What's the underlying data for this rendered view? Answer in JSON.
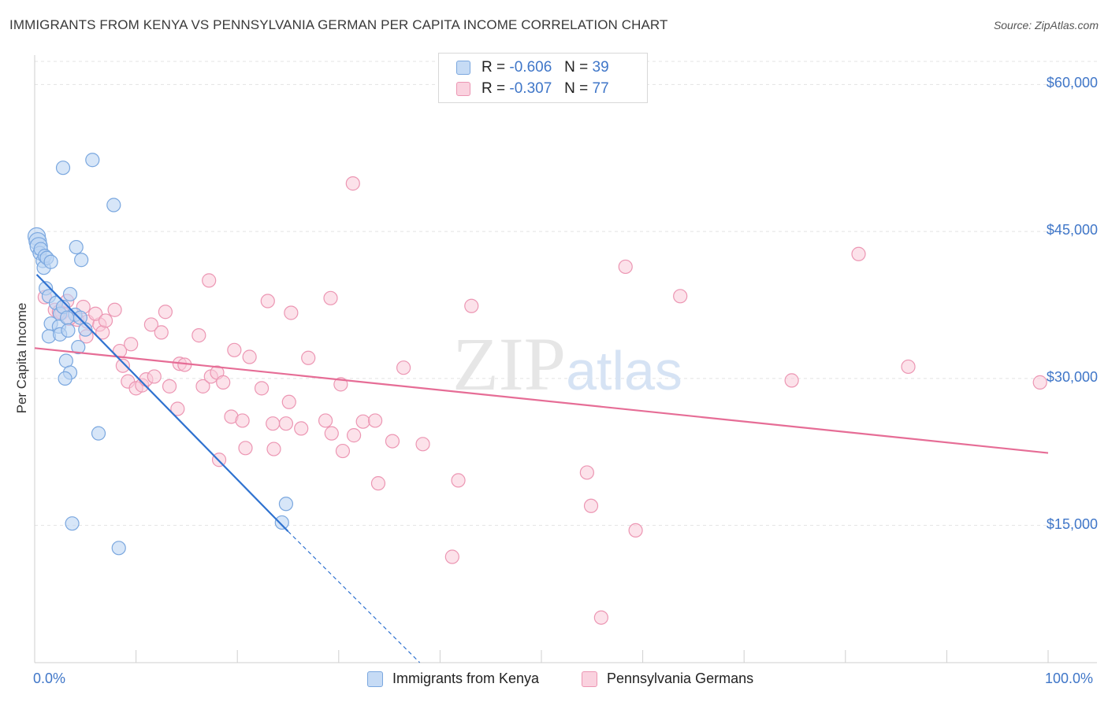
{
  "title": "IMMIGRANTS FROM KENYA VS PENNSYLVANIA GERMAN PER CAPITA INCOME CORRELATION CHART",
  "source": "Source: ZipAtlas.com",
  "watermark": "ZIPatlas",
  "legend": {
    "rows": [
      {
        "r_label": "R =",
        "r_value": "-0.606",
        "n_label": "N =",
        "n_value": "39",
        "color": "#a9c8f0"
      },
      {
        "r_label": "R =",
        "r_value": "-0.307",
        "n_label": "N =",
        "n_value": "77",
        "color": "#f5b6ca"
      }
    ]
  },
  "colors": {
    "blue_fill": "#bcd5f3",
    "blue_stroke": "#7aa7df",
    "blue_line": "#2f72d0",
    "pink_fill": "#f9cbd9",
    "pink_stroke": "#ec96b3",
    "pink_line": "#e66d96",
    "tick_label": "#3f76c8",
    "grid": "#e3e3e3"
  },
  "chart_data": {
    "type": "scatter",
    "title": "IMMIGRANTS FROM KENYA VS PENNSYLVANIA GERMAN PER CAPITA INCOME CORRELATION CHART",
    "xlabel": "",
    "ylabel": "Per Capita Income",
    "xlim": [
      0,
      100
    ],
    "ylim": [
      1000,
      63000
    ],
    "x_tick_labels": [
      "0.0%",
      "100.0%"
    ],
    "y_ticks": [
      15000,
      30000,
      45000,
      60000
    ],
    "y_tick_labels": [
      "$15,000",
      "$30,000",
      "$45,000",
      "$60,000"
    ],
    "grid": true,
    "legend_position": "top-center",
    "series": [
      {
        "name": "Immigrants from Kenya",
        "color": "#a9c8f0",
        "r": -0.606,
        "n": 39,
        "points": [
          [
            0.2,
            44500
          ],
          [
            0.3,
            44000
          ],
          [
            0.4,
            43500
          ],
          [
            0.5,
            42800
          ],
          [
            0.6,
            43200
          ],
          [
            0.8,
            42000
          ],
          [
            0.9,
            41300
          ],
          [
            1.0,
            42500
          ],
          [
            1.2,
            42300
          ],
          [
            1.6,
            41900
          ],
          [
            2.8,
            51500
          ],
          [
            5.7,
            52300
          ],
          [
            7.8,
            47700
          ],
          [
            4.1,
            43400
          ],
          [
            4.6,
            42100
          ],
          [
            1.1,
            39200
          ],
          [
            1.4,
            38400
          ],
          [
            2.1,
            37700
          ],
          [
            2.5,
            36600
          ],
          [
            2.8,
            37300
          ],
          [
            3.5,
            38600
          ],
          [
            4.0,
            36500
          ],
          [
            1.6,
            35600
          ],
          [
            2.4,
            35300
          ],
          [
            3.2,
            36200
          ],
          [
            1.4,
            34300
          ],
          [
            2.5,
            34500
          ],
          [
            3.3,
            34900
          ],
          [
            4.5,
            36200
          ],
          [
            5.0,
            35000
          ],
          [
            4.3,
            33200
          ],
          [
            3.1,
            31800
          ],
          [
            3.5,
            30600
          ],
          [
            3.0,
            30000
          ],
          [
            6.3,
            24400
          ],
          [
            3.7,
            15200
          ],
          [
            8.3,
            12700
          ],
          [
            24.8,
            17200
          ],
          [
            24.4,
            15300
          ]
        ],
        "trend": {
          "x0": 0.2,
          "y0": 40600,
          "x1": 25,
          "y1": 14400,
          "dash_to_x": 38,
          "dash_to_y": 1000
        }
      },
      {
        "name": "Pennsylvania Germans",
        "color": "#f5b6ca",
        "r": -0.307,
        "n": 77,
        "points": [
          [
            1.0,
            38300
          ],
          [
            2.0,
            37000
          ],
          [
            2.7,
            36700
          ],
          [
            3.2,
            37900
          ],
          [
            4.2,
            36000
          ],
          [
            3.4,
            36100
          ],
          [
            4.8,
            37300
          ],
          [
            5.2,
            35800
          ],
          [
            6.4,
            35500
          ],
          [
            5.1,
            34300
          ],
          [
            6.7,
            34700
          ],
          [
            7.9,
            37000
          ],
          [
            11.5,
            35500
          ],
          [
            12.5,
            34700
          ],
          [
            12.9,
            36800
          ],
          [
            16.2,
            34400
          ],
          [
            17.2,
            40000
          ],
          [
            23.0,
            37900
          ],
          [
            25.3,
            36700
          ],
          [
            29.2,
            38200
          ],
          [
            43.1,
            37400
          ],
          [
            58.3,
            41400
          ],
          [
            63.7,
            38400
          ],
          [
            81.3,
            42700
          ],
          [
            31.4,
            49900
          ],
          [
            8.4,
            32800
          ],
          [
            8.7,
            31300
          ],
          [
            9.2,
            29700
          ],
          [
            10.0,
            29000
          ],
          [
            10.6,
            29300
          ],
          [
            11.0,
            29900
          ],
          [
            11.8,
            30200
          ],
          [
            13.3,
            29200
          ],
          [
            14.3,
            31500
          ],
          [
            14.8,
            31400
          ],
          [
            16.6,
            29200
          ],
          [
            17.4,
            30200
          ],
          [
            18.0,
            30600
          ],
          [
            18.6,
            29600
          ],
          [
            19.7,
            32900
          ],
          [
            21.2,
            32200
          ],
          [
            22.4,
            29000
          ],
          [
            27.0,
            32100
          ],
          [
            30.2,
            29400
          ],
          [
            36.4,
            31100
          ],
          [
            74.7,
            29800
          ],
          [
            86.2,
            31200
          ],
          [
            99.2,
            29600
          ],
          [
            14.1,
            26900
          ],
          [
            19.4,
            26100
          ],
          [
            20.5,
            25700
          ],
          [
            23.5,
            25400
          ],
          [
            24.8,
            25400
          ],
          [
            25.1,
            27600
          ],
          [
            26.3,
            24900
          ],
          [
            28.7,
            25700
          ],
          [
            29.3,
            24400
          ],
          [
            30.4,
            22600
          ],
          [
            31.5,
            24200
          ],
          [
            32.4,
            25600
          ],
          [
            33.6,
            25700
          ],
          [
            35.3,
            23600
          ],
          [
            18.2,
            21700
          ],
          [
            20.8,
            22900
          ],
          [
            23.6,
            22800
          ],
          [
            38.3,
            23300
          ],
          [
            33.9,
            19300
          ],
          [
            41.8,
            19600
          ],
          [
            54.5,
            20400
          ],
          [
            54.9,
            17000
          ],
          [
            59.3,
            14500
          ],
          [
            41.2,
            11800
          ],
          [
            55.9,
            5600
          ],
          [
            6.0,
            36600
          ],
          [
            2.4,
            36800
          ],
          [
            7.0,
            35900
          ],
          [
            9.5,
            33500
          ]
        ],
        "trend": {
          "x0": 0,
          "y0": 33100,
          "x1": 100,
          "y1": 22400
        }
      }
    ]
  },
  "bottom_legend": [
    {
      "label": "Immigrants from Kenya"
    },
    {
      "label": "Pennsylvania Germans"
    }
  ]
}
